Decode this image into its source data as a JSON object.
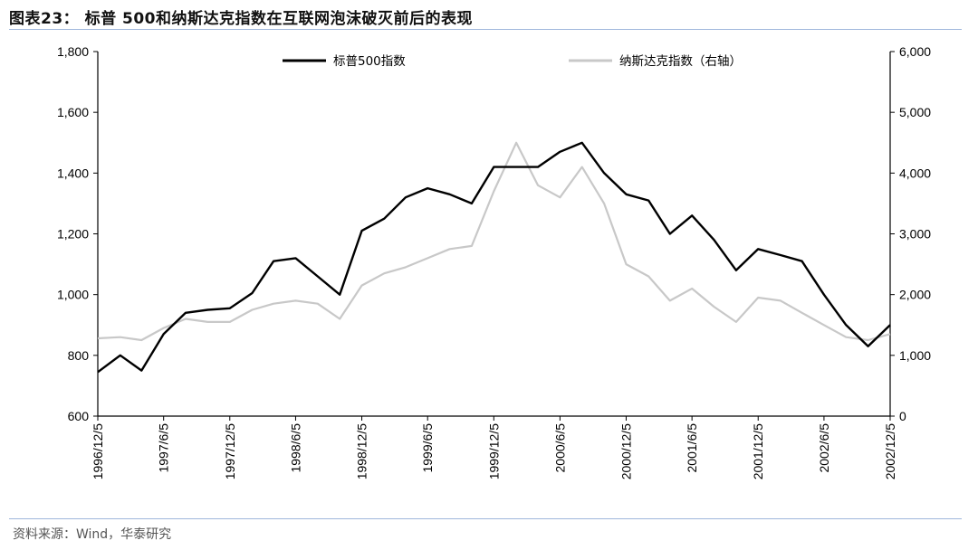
{
  "title": "图表23：  标普 500和纳斯达克指数在互联网泡沫破灭前后的表现",
  "source": "资料来源：Wind，华泰研究",
  "colors": {
    "sp500": "#000000",
    "nasdaq": "#c8c8c8",
    "rule": "#9fb7dc"
  },
  "chart_data": {
    "type": "line",
    "title": "标普 500和纳斯达克指数在互联网泡沫破灭前后的表现",
    "x_ticks": [
      "1996/12/5",
      "1997/6/5",
      "1997/12/5",
      "1998/6/5",
      "1998/12/5",
      "1999/6/5",
      "1999/12/5",
      "2000/6/5",
      "2000/12/5",
      "2001/6/5",
      "2001/12/5",
      "2002/6/5",
      "2002/12/5"
    ],
    "y_left": {
      "min": 600,
      "max": 1800,
      "ticks": [
        "600",
        "800",
        "1,000",
        "1,200",
        "1,400",
        "1,600",
        "1,800"
      ],
      "tick_values": [
        600,
        800,
        1000,
        1200,
        1400,
        1600,
        1800
      ]
    },
    "y_right": {
      "min": 0,
      "max": 6000,
      "ticks": [
        "0",
        "1,000",
        "2,000",
        "3,000",
        "4,000",
        "5,000",
        "6,000"
      ],
      "tick_values": [
        0,
        1000,
        2000,
        3000,
        4000,
        5000,
        6000
      ]
    },
    "legend_position": "top",
    "grid": false,
    "series": [
      {
        "name": "标普500指数",
        "axis": "left",
        "color": "#000000",
        "x": [
          "1996/12/5",
          "1997/2/5",
          "1997/4/5",
          "1997/6/5",
          "1997/8/5",
          "1997/10/5",
          "1997/12/5",
          "1998/2/5",
          "1998/4/5",
          "1998/6/5",
          "1998/8/5",
          "1998/10/5",
          "1998/12/5",
          "1999/2/5",
          "1999/4/5",
          "1999/6/5",
          "1999/8/5",
          "1999/10/5",
          "1999/12/5",
          "2000/2/5",
          "2000/4/5",
          "2000/6/5",
          "2000/8/5",
          "2000/10/5",
          "2000/12/5",
          "2001/2/5",
          "2001/4/5",
          "2001/6/5",
          "2001/8/5",
          "2001/10/5",
          "2001/12/5",
          "2002/2/5",
          "2002/4/5",
          "2002/6/5",
          "2002/8/5",
          "2002/10/5",
          "2002/12/5"
        ],
        "values": [
          745,
          800,
          750,
          870,
          940,
          950,
          955,
          1005,
          1110,
          1120,
          1060,
          1000,
          1210,
          1250,
          1320,
          1350,
          1330,
          1300,
          1420,
          1420,
          1420,
          1470,
          1500,
          1400,
          1330,
          1310,
          1200,
          1260,
          1180,
          1080,
          1150,
          1130,
          1110,
          1000,
          900,
          830,
          900
        ]
      },
      {
        "name": "纳斯达克指数（右轴）",
        "axis": "right",
        "color": "#c8c8c8",
        "x": [
          "1996/12/5",
          "1997/2/5",
          "1997/4/5",
          "1997/6/5",
          "1997/8/5",
          "1997/10/5",
          "1997/12/5",
          "1998/2/5",
          "1998/4/5",
          "1998/6/5",
          "1998/8/5",
          "1998/10/5",
          "1998/12/5",
          "1999/2/5",
          "1999/4/5",
          "1999/6/5",
          "1999/8/5",
          "1999/10/5",
          "1999/12/5",
          "2000/2/5",
          "2000/4/5",
          "2000/6/5",
          "2000/8/5",
          "2000/10/5",
          "2000/12/5",
          "2001/2/5",
          "2001/4/5",
          "2001/6/5",
          "2001/8/5",
          "2001/10/5",
          "2001/12/5",
          "2002/2/5",
          "2002/4/5",
          "2002/6/5",
          "2002/8/5",
          "2002/10/5",
          "2002/12/5"
        ],
        "values": [
          1280,
          1300,
          1250,
          1450,
          1600,
          1550,
          1550,
          1750,
          1850,
          1900,
          1850,
          1600,
          2150,
          2350,
          2450,
          2600,
          2750,
          2800,
          3700,
          4500,
          3800,
          3600,
          4100,
          3500,
          2500,
          2300,
          1900,
          2100,
          1800,
          1550,
          1950,
          1900,
          1700,
          1500,
          1300,
          1250,
          1350
        ]
      }
    ]
  }
}
